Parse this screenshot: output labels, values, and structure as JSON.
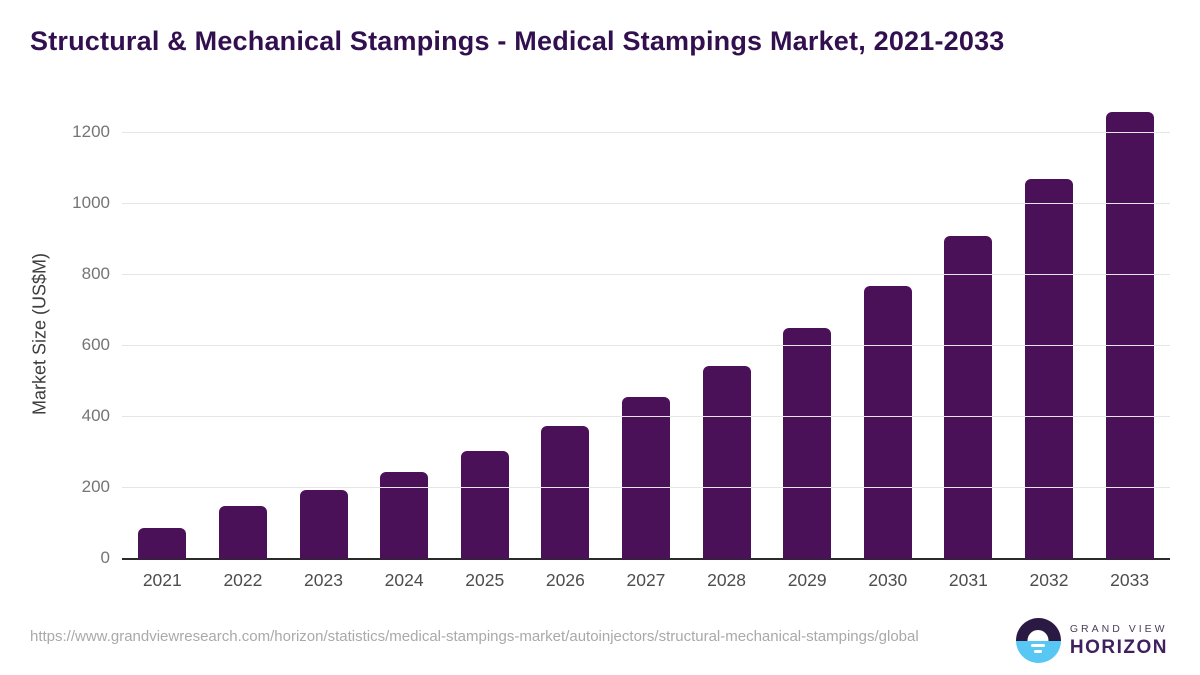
{
  "title": "Structural & Mechanical Stampings - Medical Stampings Market, 2021-2033",
  "chart_data": {
    "type": "bar",
    "categories": [
      "2021",
      "2022",
      "2023",
      "2024",
      "2025",
      "2026",
      "2027",
      "2028",
      "2029",
      "2030",
      "2031",
      "2032",
      "2033"
    ],
    "values": [
      87,
      150,
      194,
      245,
      305,
      375,
      455,
      545,
      650,
      770,
      910,
      1070,
      1260
    ],
    "title": "Structural & Mechanical Stampings - Medical Stampings Market, 2021-2033",
    "xlabel": "",
    "ylabel": "Market Size (US$M)",
    "yticks": [
      0,
      200,
      400,
      600,
      800,
      1000,
      1200
    ],
    "ylim": [
      0,
      1300
    ],
    "grid": true,
    "legend": "none",
    "bar_color": "#4a1158",
    "gridline_color": "#e6e6e6",
    "axis_line_color": "#2b2b2b",
    "title_color": "#32104f"
  },
  "footer": {
    "source_url": "https://www.grandviewresearch.com/horizon/statistics/medical-stampings-market/autoinjectors/structural-mechanical-stampings/global",
    "logo": {
      "brand_top": "GRAND VIEW",
      "brand_bottom": "HORIZON",
      "icon": "horizon-sun-icon",
      "icon_top_color": "#2a1a43",
      "icon_bottom_color": "#58c7f3"
    }
  }
}
